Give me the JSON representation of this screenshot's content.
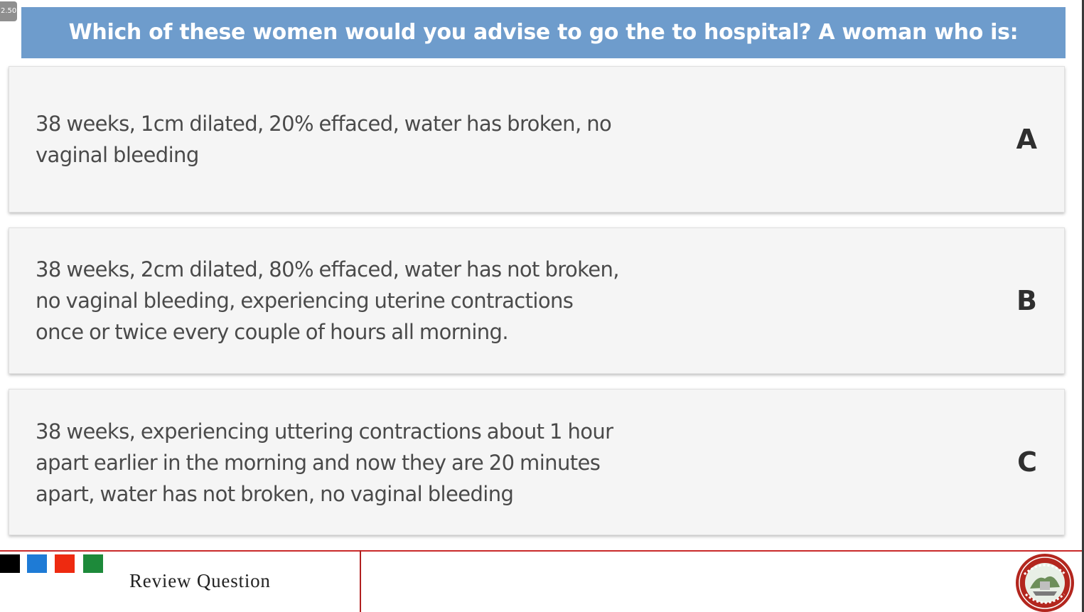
{
  "overlay": {
    "speed_badge": "2.50"
  },
  "question": {
    "text": "Which of these women would you advise to go the to hospital? A woman who is:"
  },
  "options": [
    {
      "letter": "A",
      "lines": [
        "38 weeks, 1cm dilated, 20% effaced, water has broken, no",
        "vaginal bleeding"
      ]
    },
    {
      "letter": "B",
      "lines": [
        "38 weeks, 2cm dilated, 80% effaced, water has not broken,",
        "no vaginal bleeding, experiencing uterine contractions",
        "once or twice every couple of hours all morning."
      ]
    },
    {
      "letter": "C",
      "lines": [
        "38 weeks, experiencing uttering contractions about 1 hour",
        "apart earlier in the morning and now they are 20 minutes",
        "apart, water has not broken, no vaginal bleeding"
      ]
    }
  ],
  "footer": {
    "title": "Review Question",
    "color_squares": [
      "#000000",
      "#1e7bd6",
      "#ee2a10",
      "#1d8a3a"
    ],
    "logo_icon": "university-seal-icon"
  },
  "colors": {
    "header_background": "#6e9ccc",
    "option_background": "#f5f5f5",
    "accent_line": "#c92a2a"
  }
}
